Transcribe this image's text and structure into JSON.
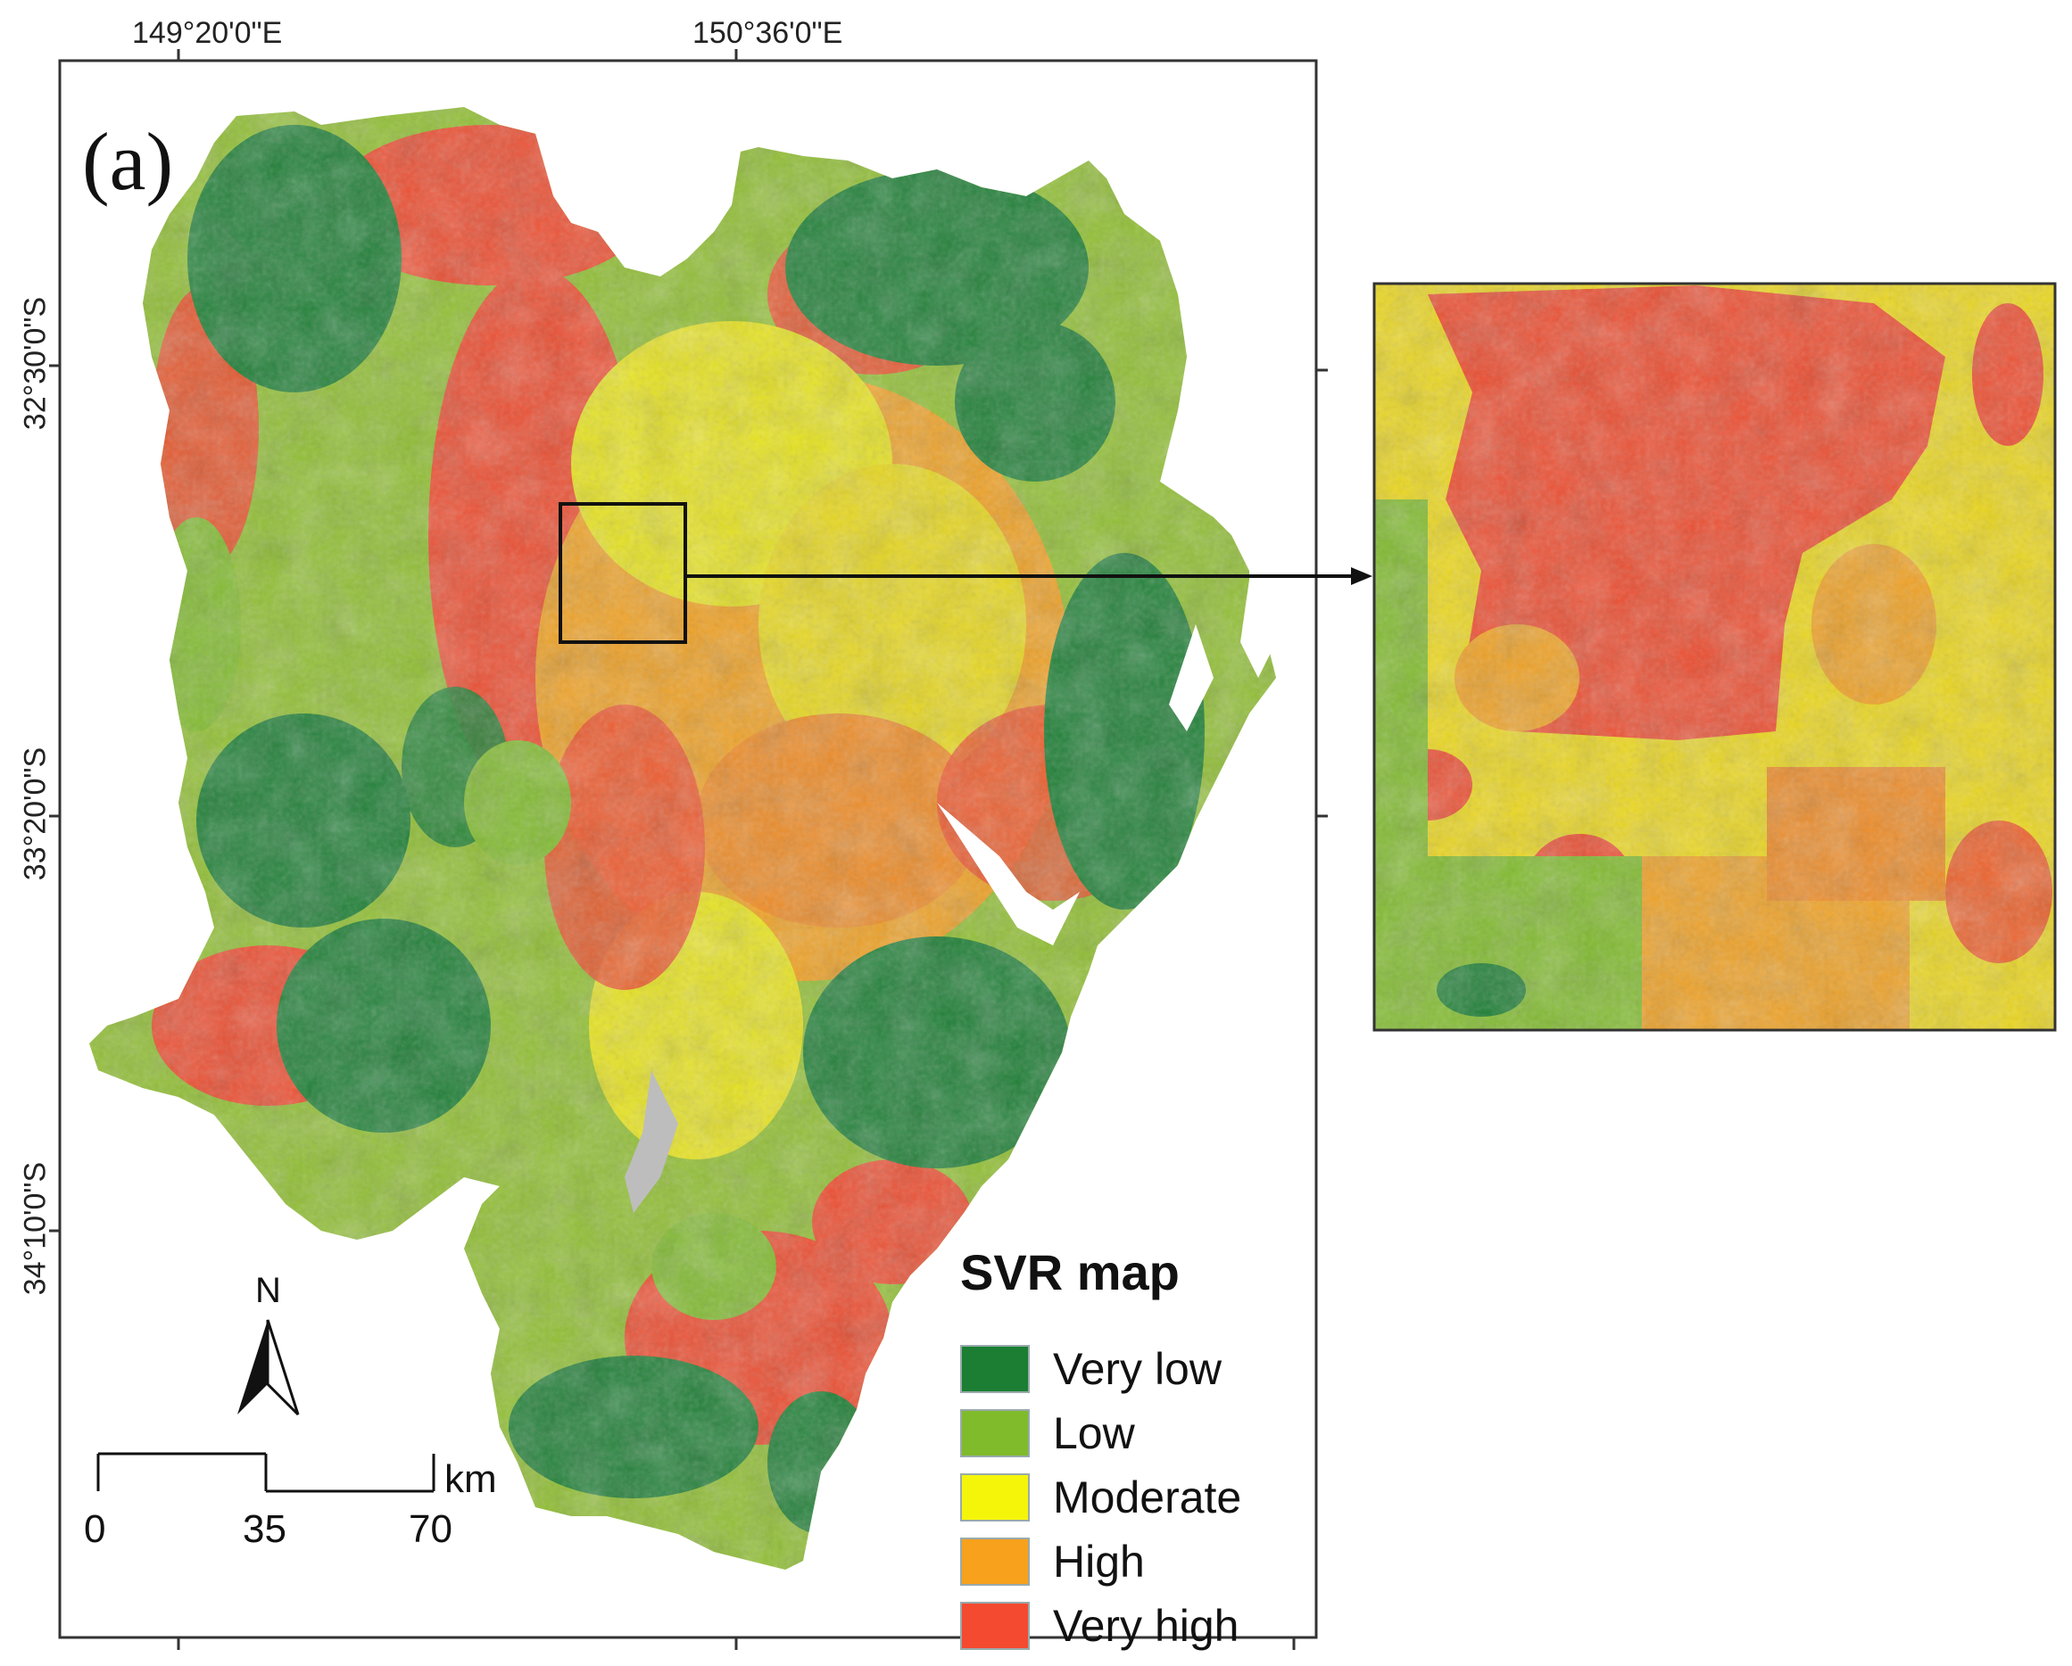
{
  "panel_label": "(a)",
  "top_coords": [
    "149°20'0\"E",
    "150°36'0\"E"
  ],
  "left_coords": [
    "32°30'0\"S",
    "33°20'0\"S",
    "34°10'0\"S"
  ],
  "legend": {
    "title": "SVR map",
    "items": [
      {
        "label": "Very low",
        "color": "#1b7e33"
      },
      {
        "label": "Low",
        "color": "#7fbb2a"
      },
      {
        "label": "Moderate",
        "color": "#f5f50a"
      },
      {
        "label": "High",
        "color": "#f7a11c"
      },
      {
        "label": "Very high",
        "color": "#f44a30"
      }
    ]
  },
  "north": "N",
  "scale": {
    "labels": [
      "0",
      "35",
      "70"
    ],
    "unit": "km"
  },
  "map_colors": {
    "very_low": "#1b7e33",
    "low": "#7fbb2a",
    "moderate": "#e8e41a",
    "high": "#f0a020",
    "very_high": "#ee4a2c",
    "water": "#ffffff",
    "lake": "#b9b9b9"
  }
}
